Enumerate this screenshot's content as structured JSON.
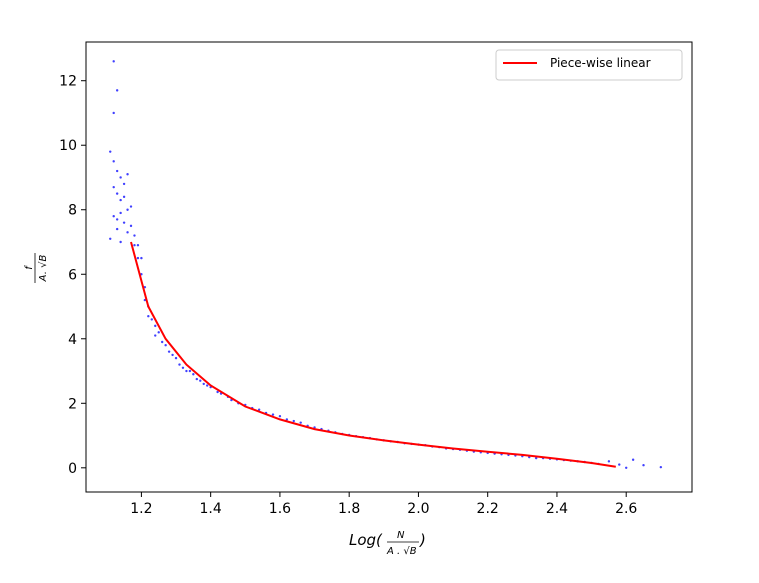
{
  "chart_data": {
    "type": "scatter",
    "x_ticks": [
      "1.2",
      "1.4",
      "1.6",
      "1.8",
      "2.0",
      "2.2",
      "2.4",
      "2.6"
    ],
    "y_ticks": [
      "0",
      "2",
      "4",
      "6",
      "8",
      "10",
      "12"
    ],
    "xlim": [
      1.04,
      2.79
    ],
    "ylim": [
      -0.75,
      13.2
    ],
    "xlabel_parts": {
      "log": "Log(",
      "numerator": "N",
      "denominator": "A . √B",
      "close": ")"
    },
    "ylabel_parts": {
      "numerator": "f",
      "denominator": "A. √B"
    },
    "legend": {
      "position": "top-right",
      "entries": [
        {
          "label": "Piece-wise linear",
          "color": "#ff0000"
        }
      ]
    },
    "colors": {
      "points": "#0000ff",
      "line": "#ff0000"
    },
    "series": [
      {
        "name": "Piece-wise linear",
        "style": "line",
        "x": [
          1.17,
          1.22,
          1.27,
          1.33,
          1.4,
          1.5,
          1.6,
          1.7,
          1.8,
          1.9,
          2.0,
          2.1,
          2.2,
          2.3,
          2.4,
          2.5,
          2.57
        ],
        "y": [
          7.0,
          5.0,
          4.0,
          3.2,
          2.55,
          1.9,
          1.5,
          1.2,
          1.0,
          0.85,
          0.72,
          0.6,
          0.5,
          0.4,
          0.28,
          0.15,
          0.03
        ]
      },
      {
        "style": "scatter",
        "x": [
          1.12,
          1.13,
          1.12,
          1.11,
          1.12,
          1.13,
          1.14,
          1.15,
          1.13,
          1.14,
          1.12,
          1.16,
          1.15,
          1.11,
          1.17,
          1.16,
          1.14,
          1.13,
          1.18,
          1.17,
          1.15,
          1.12,
          1.14,
          1.16,
          1.13,
          1.18,
          1.19,
          1.19,
          1.2,
          1.2,
          1.21,
          1.21,
          1.22,
          1.22,
          1.23,
          1.24,
          1.24,
          1.25,
          1.26,
          1.27,
          1.28,
          1.29,
          1.3,
          1.31,
          1.32,
          1.33,
          1.34,
          1.35,
          1.36,
          1.37,
          1.38,
          1.39,
          1.4,
          1.42,
          1.43,
          1.45,
          1.46,
          1.48,
          1.5,
          1.52,
          1.54,
          1.56,
          1.58,
          1.6,
          1.62,
          1.64,
          1.66,
          1.68,
          1.7,
          1.72,
          1.74,
          1.76,
          1.78,
          1.8,
          1.82,
          1.84,
          1.86,
          1.88,
          1.9,
          1.92,
          1.94,
          1.96,
          1.98,
          2.0,
          2.02,
          2.04,
          2.06,
          2.08,
          2.1,
          2.12,
          2.14,
          2.16,
          2.18,
          2.2,
          2.22,
          2.24,
          2.26,
          2.28,
          2.3,
          2.32,
          2.34,
          2.36,
          2.38,
          2.4,
          2.42,
          2.44,
          2.46,
          2.48,
          2.5,
          2.52,
          2.55,
          2.58,
          2.6,
          2.62,
          2.65,
          2.7
        ],
        "y": [
          12.6,
          11.7,
          11.0,
          9.8,
          9.5,
          9.2,
          9.0,
          8.8,
          8.5,
          8.3,
          7.8,
          8.0,
          7.6,
          7.1,
          7.5,
          7.3,
          7.9,
          7.4,
          7.2,
          8.1,
          8.4,
          8.7,
          7.0,
          9.1,
          7.7,
          6.9,
          6.5,
          6.9,
          6.0,
          6.5,
          5.6,
          5.2,
          5.0,
          4.7,
          4.6,
          4.4,
          4.1,
          4.2,
          3.9,
          3.8,
          3.6,
          3.5,
          3.4,
          3.2,
          3.1,
          3.0,
          3.0,
          2.9,
          2.75,
          2.7,
          2.6,
          2.55,
          2.5,
          2.35,
          2.3,
          2.2,
          2.1,
          2.0,
          1.95,
          1.85,
          1.8,
          1.7,
          1.65,
          1.6,
          1.5,
          1.45,
          1.4,
          1.3,
          1.25,
          1.2,
          1.15,
          1.1,
          1.05,
          1.02,
          0.98,
          0.95,
          0.92,
          0.88,
          0.85,
          0.82,
          0.8,
          0.76,
          0.74,
          0.72,
          0.7,
          0.66,
          0.64,
          0.6,
          0.58,
          0.56,
          0.53,
          0.5,
          0.48,
          0.46,
          0.44,
          0.42,
          0.4,
          0.38,
          0.36,
          0.33,
          0.3,
          0.3,
          0.28,
          0.26,
          0.24,
          0.22,
          0.2,
          0.18,
          0.15,
          0.12,
          0.2,
          0.1,
          0.0,
          0.25,
          0.08,
          0.02
        ]
      }
    ]
  }
}
